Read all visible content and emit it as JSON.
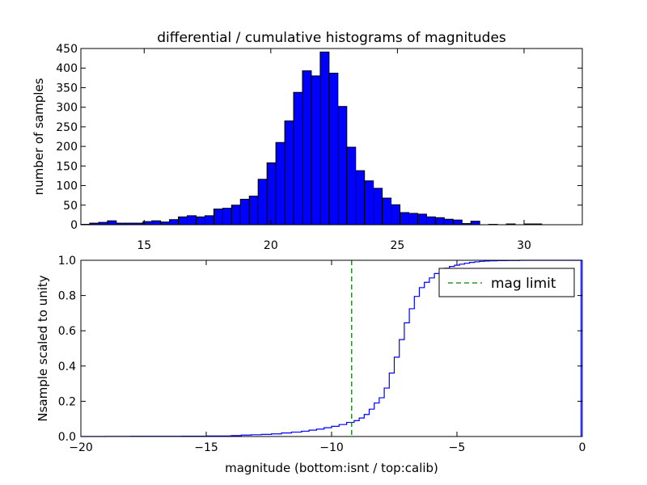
{
  "figure": {
    "title": "differential / cumulative histograms of magnitudes"
  },
  "colors": {
    "bar_fill": "#0000ff",
    "bar_edge": "#000000",
    "step_line": "#0000ff",
    "mag_limit_line": "#008000",
    "background": "#ffffff"
  },
  "chart_data": [
    {
      "type": "bar",
      "title": "differential / cumulative histograms of magnitudes",
      "xlabel": "",
      "ylabel": "number of samples",
      "xlim": [
        12.5,
        32.3
      ],
      "ylim": [
        0,
        450
      ],
      "xaxis_position": "bottom",
      "xticks": [
        15,
        20,
        25,
        30
      ],
      "yticks": [
        0,
        50,
        100,
        150,
        200,
        250,
        300,
        350,
        400,
        450
      ],
      "bin_edges": [
        12.5,
        12.85,
        13.2,
        13.55,
        13.9,
        14.25,
        14.6,
        14.95,
        15.3,
        15.65,
        16.0,
        16.35,
        16.7,
        17.05,
        17.4,
        17.75,
        18.1,
        18.45,
        18.8,
        19.15,
        19.5,
        19.85,
        20.2,
        20.55,
        20.9,
        21.25,
        21.6,
        21.95,
        22.3,
        22.65,
        23.0,
        23.35,
        23.7,
        24.05,
        24.4,
        24.75,
        25.1,
        25.45,
        25.8,
        26.15,
        26.5,
        26.85,
        27.2,
        27.55,
        27.9,
        28.25,
        28.6,
        28.95,
        29.3,
        29.65,
        30.0,
        30.35,
        30.7,
        31.05,
        31.4,
        31.75,
        32.1
      ],
      "values": [
        1,
        4,
        6,
        10,
        4,
        4,
        4,
        8,
        10,
        7,
        13,
        20,
        23,
        20,
        23,
        40,
        42,
        50,
        65,
        73,
        116,
        158,
        210,
        265,
        338,
        393,
        380,
        441,
        387,
        302,
        198,
        138,
        112,
        93,
        68,
        51,
        31,
        29,
        27,
        20,
        18,
        14,
        12,
        3,
        9,
        0,
        1,
        0,
        2,
        0,
        2,
        2,
        0,
        0,
        0,
        0
      ]
    },
    {
      "type": "line",
      "subtype": "cumulative-step",
      "title": "",
      "xlabel": "magnitude (bottom:isnt / top:calib)",
      "ylabel": "Nsample scaled to unity",
      "xlim": [
        -20,
        0
      ],
      "ylim": [
        0.0,
        1.0
      ],
      "xticks": [
        -20,
        -15,
        -10,
        -5,
        0
      ],
      "xtick_labels": [
        "−20",
        "−15",
        "−10",
        "−5",
        "0"
      ],
      "yticks": [
        0.0,
        0.2,
        0.4,
        0.6,
        0.8,
        1.0
      ],
      "ytick_labels": [
        "0.0",
        "0.2",
        "0.4",
        "0.6",
        "0.8",
        "1.0"
      ],
      "series": [
        {
          "x": [
            -20,
            -19.0,
            -18.0,
            -17.0,
            -16.0,
            -15.0,
            -14.0,
            -13.6,
            -13.2,
            -12.8,
            -12.4,
            -12.0,
            -11.6,
            -11.2,
            -10.9,
            -10.6,
            -10.3,
            -10.0,
            -9.7,
            -9.4,
            -9.1,
            -8.9,
            -8.7,
            -8.5,
            -8.3,
            -8.1,
            -7.9,
            -7.7,
            -7.5,
            -7.3,
            -7.1,
            -6.9,
            -6.7,
            -6.5,
            -6.3,
            -6.1,
            -5.9,
            -5.7,
            -5.5,
            -5.3,
            -5.1,
            -4.9,
            -4.7,
            -4.5,
            -4.3,
            -4.1,
            -3.9,
            -3.7,
            -3.4,
            -3.0,
            -2.5,
            -1.5,
            -0.05
          ],
          "y": [
            0.0,
            0.0005,
            0.001,
            0.0015,
            0.002,
            0.003,
            0.005,
            0.008,
            0.01,
            0.012,
            0.015,
            0.02,
            0.025,
            0.03,
            0.036,
            0.042,
            0.05,
            0.058,
            0.068,
            0.08,
            0.09,
            0.105,
            0.125,
            0.155,
            0.19,
            0.22,
            0.275,
            0.36,
            0.45,
            0.55,
            0.645,
            0.725,
            0.795,
            0.845,
            0.875,
            0.9,
            0.925,
            0.94,
            0.955,
            0.965,
            0.972,
            0.978,
            0.983,
            0.988,
            0.991,
            0.994,
            0.996,
            0.997,
            0.998,
            0.999,
            1.0,
            1.0,
            1.0
          ]
        }
      ],
      "vline": {
        "x": -9.2,
        "label": "mag limit"
      },
      "legend": {
        "position": "top-right",
        "entries": [
          "mag limit"
        ]
      }
    }
  ]
}
